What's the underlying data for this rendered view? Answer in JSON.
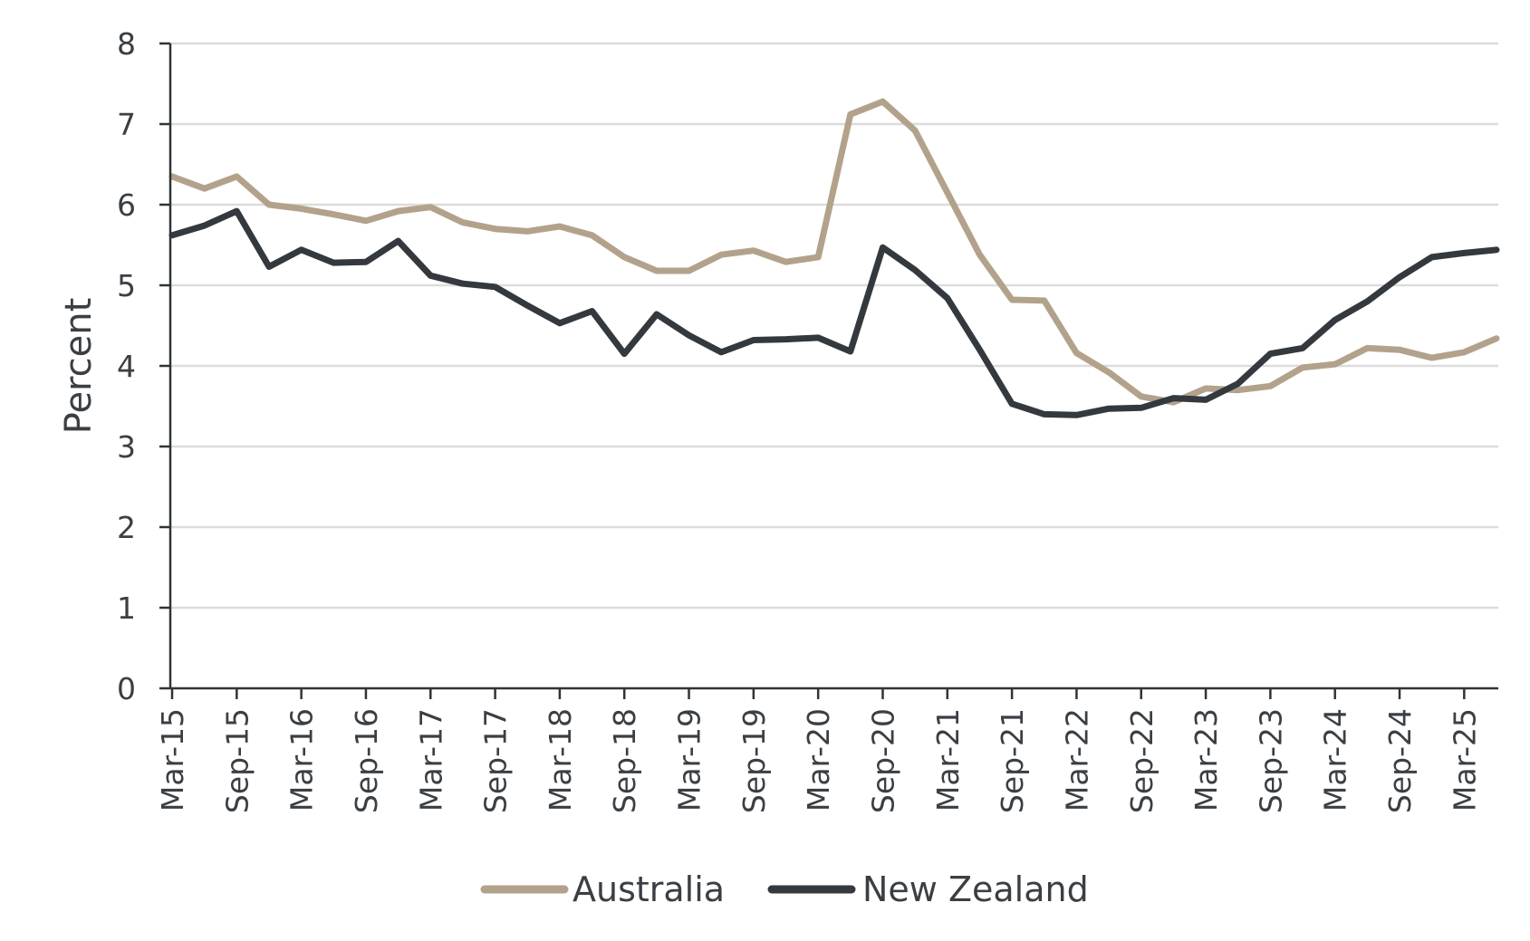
{
  "chart_data": {
    "type": "line",
    "ylabel": "Percent",
    "ylim": [
      0,
      8
    ],
    "yticks": [
      "0",
      "1",
      "2",
      "3",
      "4",
      "5",
      "6",
      "7",
      "8"
    ],
    "grid": "horizontal",
    "legend_position": "bottom-center",
    "x": [
      "Mar-15",
      "Jun-15",
      "Sep-15",
      "Dec-15",
      "Mar-16",
      "Jun-16",
      "Sep-16",
      "Dec-16",
      "Mar-17",
      "Jun-17",
      "Sep-17",
      "Dec-17",
      "Mar-18",
      "Jun-18",
      "Sep-18",
      "Dec-18",
      "Mar-19",
      "Jun-19",
      "Sep-19",
      "Dec-19",
      "Mar-20",
      "Jun-20",
      "Sep-20",
      "Dec-20",
      "Mar-21",
      "Jun-21",
      "Sep-21",
      "Dec-21",
      "Mar-22",
      "Jun-22",
      "Sep-22",
      "Dec-22",
      "Mar-23",
      "Jun-23",
      "Sep-23",
      "Dec-23",
      "Mar-24",
      "Jun-24",
      "Sep-24",
      "Dec-24",
      "Mar-25",
      "Jun-25"
    ],
    "xtick_labels": [
      "Mar-15",
      "Sep-15",
      "Mar-16",
      "Sep-16",
      "Mar-17",
      "Sep-17",
      "Mar-18",
      "Sep-18",
      "Mar-19",
      "Sep-19",
      "Mar-20",
      "Sep-20",
      "Mar-21",
      "Sep-21",
      "Mar-22",
      "Sep-22",
      "Mar-23",
      "Sep-23",
      "Mar-24",
      "Sep-24",
      "Mar-25"
    ],
    "series": [
      {
        "name": "Australia",
        "color": "#b3a28b",
        "values": [
          6.35,
          6.2,
          6.35,
          6.0,
          5.95,
          5.88,
          5.8,
          5.92,
          5.97,
          5.78,
          5.7,
          5.67,
          5.73,
          5.62,
          5.35,
          5.18,
          5.18,
          5.38,
          5.43,
          5.29,
          5.35,
          7.12,
          7.28,
          6.92,
          6.15,
          5.38,
          4.82,
          4.81,
          4.16,
          3.92,
          3.62,
          3.55,
          3.72,
          3.7,
          3.75,
          3.98,
          4.02,
          4.22,
          4.2,
          4.1,
          4.17,
          4.34
        ]
      },
      {
        "name": "New Zealand",
        "color": "#33393e",
        "values": [
          5.62,
          5.74,
          5.92,
          5.23,
          5.44,
          5.28,
          5.29,
          5.55,
          5.12,
          5.02,
          4.98,
          4.75,
          4.53,
          4.68,
          4.15,
          4.64,
          4.38,
          4.17,
          4.32,
          4.33,
          4.35,
          4.18,
          5.47,
          5.19,
          4.84,
          4.2,
          3.53,
          3.4,
          3.39,
          3.47,
          3.48,
          3.6,
          3.58,
          3.78,
          4.15,
          4.22,
          4.57,
          4.8,
          5.1,
          5.35,
          5.4,
          5.44
        ]
      }
    ]
  }
}
